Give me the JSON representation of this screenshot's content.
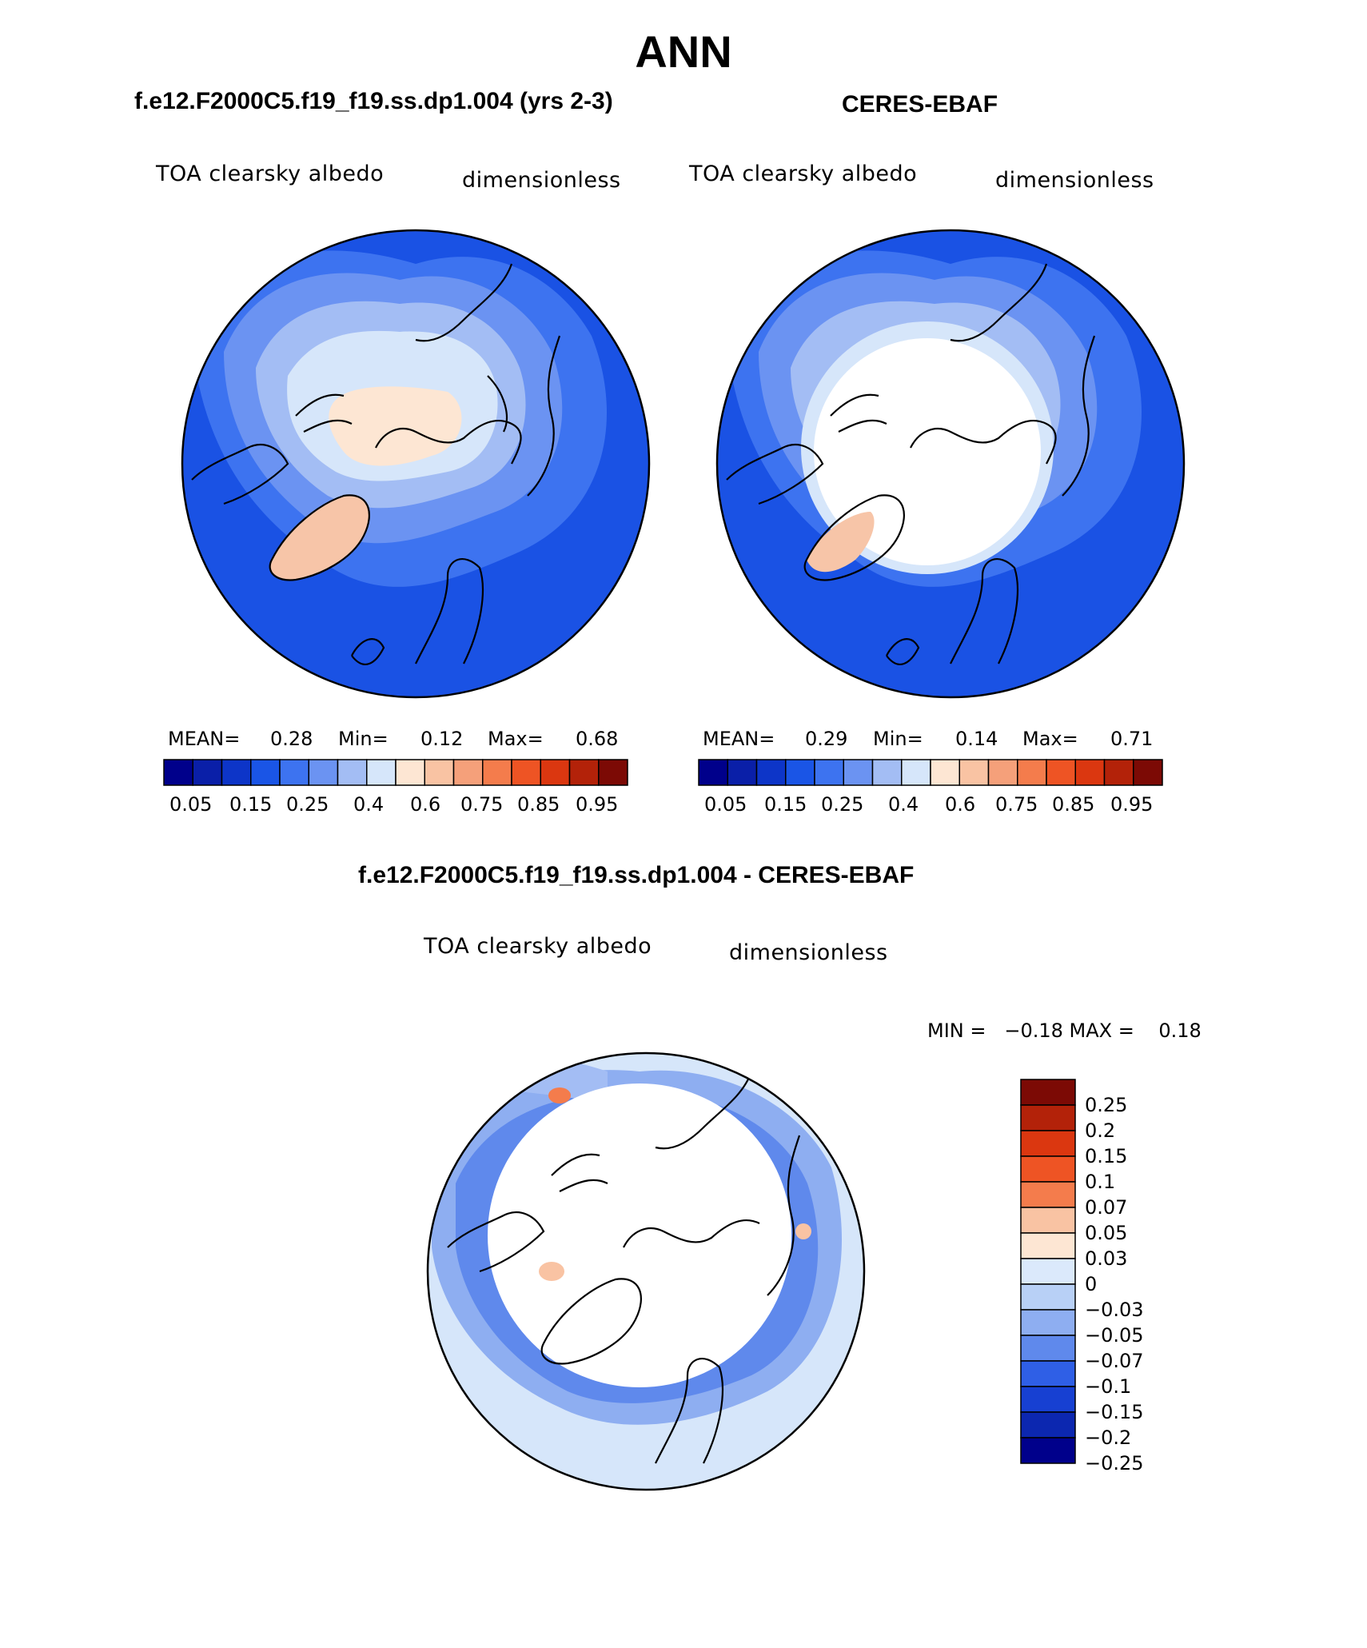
{
  "title": "ANN",
  "panels": [
    {
      "case": "f.e12.F2000C5.f19_f19.ss.dp1.004 (yrs 2-3)",
      "variable": "TOA clearsky albedo",
      "units": "dimensionless",
      "stats": {
        "mean_label": "MEAN=",
        "mean": "0.28",
        "min_label": "Min=",
        "min": "0.12",
        "max_label": "Max=",
        "max": "0.68"
      }
    },
    {
      "case": "CERES-EBAF",
      "variable": "TOA clearsky albedo",
      "units": "dimensionless",
      "stats": {
        "mean_label": "MEAN=",
        "mean": "0.29",
        "min_label": "Min=",
        "min": "0.14",
        "max_label": "Max=",
        "max": "0.71"
      }
    }
  ],
  "abs_colorbar": {
    "colors": [
      "#00008b",
      "#0a1fa8",
      "#0d35c8",
      "#1a55e6",
      "#3d73f0",
      "#6b93f2",
      "#a3bdf4",
      "#d6e6fa",
      "#fde6d3",
      "#f9c3a3",
      "#f5a07a",
      "#f47c4c",
      "#ee5424",
      "#db3710",
      "#b32209",
      "#7c0a05"
    ],
    "labels": [
      "0.05",
      "0.15",
      "0.25",
      "0.4",
      "0.6",
      "0.75",
      "0.85",
      "0.95"
    ]
  },
  "difference": {
    "title": "f.e12.F2000C5.f19_f19.ss.dp1.004 - CERES-EBAF",
    "variable": "TOA clearsky albedo",
    "units": "dimensionless",
    "minmax_text": "MIN =   −0.18 MAX =    0.18",
    "colors": [
      "#7c0a05",
      "#b32209",
      "#db3710",
      "#ee5424",
      "#f47c4c",
      "#f9c3a3",
      "#fde6d3",
      "#dbe9fb",
      "#b8d0f6",
      "#8eaef1",
      "#5f89ec",
      "#2f5fe6",
      "#1740d2",
      "#0c27b0",
      "#00008b"
    ],
    "labels": [
      "0.25",
      "0.2",
      "0.15",
      "0.1",
      "0.07",
      "0.05",
      "0.03",
      "0",
      "−0.03",
      "−0.05",
      "−0.07",
      "−0.1",
      "−0.15",
      "−0.2",
      "−0.25"
    ]
  },
  "map_colors": {
    "deep": "#1a52e4",
    "mid": "#3d73f0",
    "light": "#6b93f2",
    "pale": "#a3bdf4",
    "verypale": "#d6e6fa",
    "cream": "#fde6d3",
    "salmon": "#f7c5a8",
    "orange": "#f47c4c",
    "white": "#ffffff"
  }
}
